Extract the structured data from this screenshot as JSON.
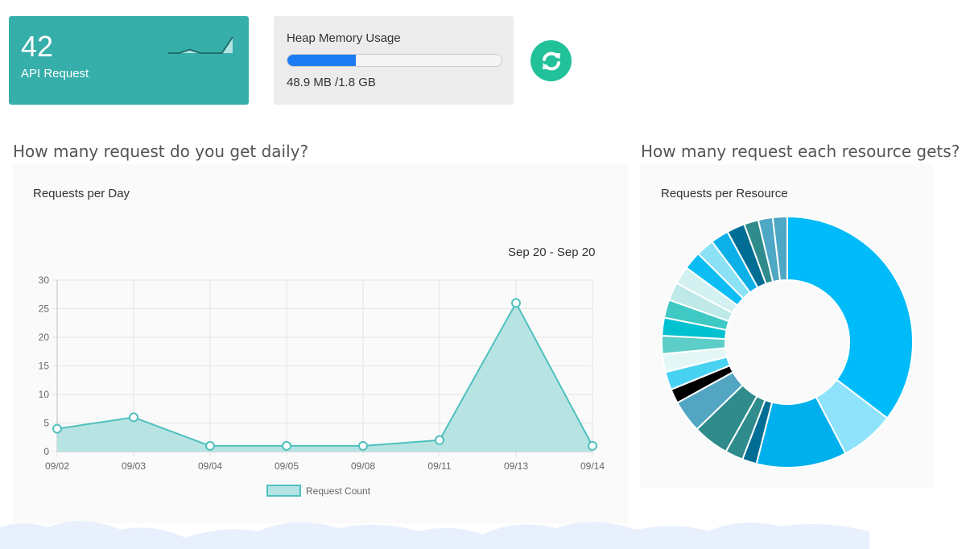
{
  "api_card": {
    "count": "42",
    "label": "API Request",
    "sparkline": [
      0,
      0,
      2,
      0,
      0,
      0,
      9
    ],
    "color": "#36aea9"
  },
  "heap_card": {
    "title": "Heap Memory Usage",
    "value_text": "48.9 MB /1.8 GB",
    "usage_fraction": 0.32,
    "bar_color": "#1d7cf2"
  },
  "refresh_button": {
    "icon": "refresh-icon",
    "color": "#21c19a"
  },
  "daily_section": {
    "heading": "How many request do you get daily?",
    "panel_title": "Requests per Day",
    "date_range": "Sep 20 - Sep 20"
  },
  "resource_section": {
    "heading": "How many request each resource gets?",
    "panel_title": "Requests per Resource"
  },
  "chart_data": [
    {
      "type": "area",
      "title": "Requests per Day",
      "categories": [
        "09/02",
        "09/03",
        "09/04",
        "09/05",
        "09/08",
        "09/11",
        "09/13",
        "09/14"
      ],
      "series": [
        {
          "name": "Request Count",
          "values": [
            4,
            6,
            1,
            1,
            1,
            2,
            26,
            1
          ],
          "color": "#4fc0bd",
          "fill": "#b3e3e2"
        }
      ],
      "y_ticks": [
        0,
        5,
        10,
        15,
        20,
        25,
        30
      ],
      "ylim": [
        0,
        30
      ],
      "grid": true,
      "legend_position": "bottom"
    },
    {
      "type": "pie",
      "title": "Requests per Resource",
      "donut": true,
      "values": [
        38,
        7.5,
        12.5,
        2,
        2.5,
        5,
        4.5,
        2,
        2.5,
        2.5,
        2.5,
        2.5,
        2.5,
        2.5,
        2.5,
        2.5,
        2.5,
        2.5,
        2.5,
        2,
        2,
        2
      ],
      "colors": [
        "#00bbf9",
        "#8ee3fb",
        "#00b0ec",
        "#006e94",
        "#2f8b8c",
        "#2f8b8c",
        "#53a6c2",
        "#000000",
        "#48d2f2",
        "#e4f7f7",
        "#5dcdc8",
        "#00c1d0",
        "#3ec9c4",
        "#bfe8e8",
        "#d4f1f2",
        "#0bbdf3",
        "#8ce1f5",
        "#0bb0e8",
        "#006e94",
        "#2f8b8c",
        "#4ea7c4",
        "#4ea7c4"
      ]
    }
  ]
}
